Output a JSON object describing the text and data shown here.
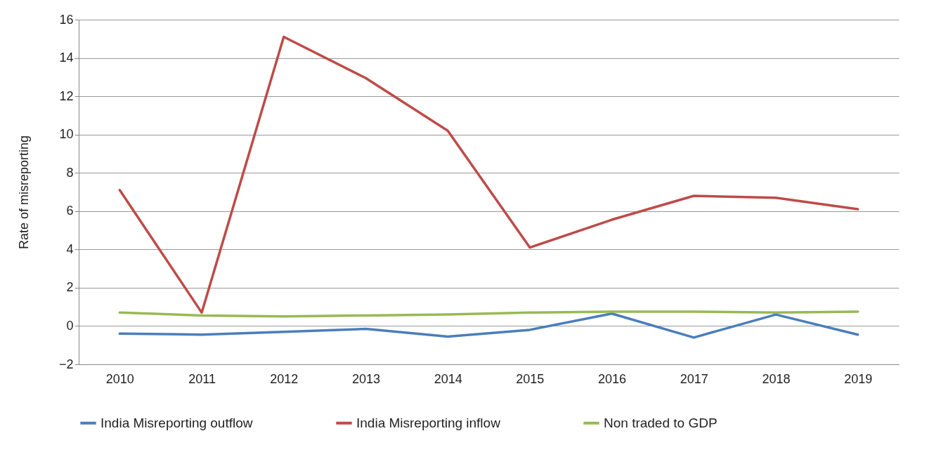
{
  "chart_data": {
    "type": "line",
    "ylabel": "Rate of misreporting",
    "categories": [
      "2010",
      "2011",
      "2012",
      "2013",
      "2014",
      "2015",
      "2016",
      "2017",
      "2018",
      "2019"
    ],
    "ylim": [
      -2,
      16
    ],
    "yticks": [
      -2,
      0,
      2,
      4,
      6,
      8,
      10,
      12,
      14,
      16
    ],
    "grid": "y",
    "legend": "bottom",
    "marker": "none",
    "line_style": "solid",
    "series": [
      {
        "name": "India Misreporting outflow",
        "color": "#4a7ebb",
        "values": [
          -0.4,
          -0.45,
          -0.3,
          -0.15,
          -0.55,
          -0.2,
          0.65,
          -0.6,
          0.6,
          -0.45
        ]
      },
      {
        "name": "India Misreporting inflow",
        "color": "#be4b48",
        "values": [
          7.1,
          0.7,
          15.1,
          12.95,
          10.2,
          4.1,
          5.55,
          6.8,
          6.7,
          6.1
        ]
      },
      {
        "name": "Non traded to GDP",
        "color": "#98b954",
        "values": [
          0.7,
          0.55,
          0.5,
          0.55,
          0.6,
          0.7,
          0.75,
          0.75,
          0.7,
          0.75
        ]
      }
    ]
  }
}
